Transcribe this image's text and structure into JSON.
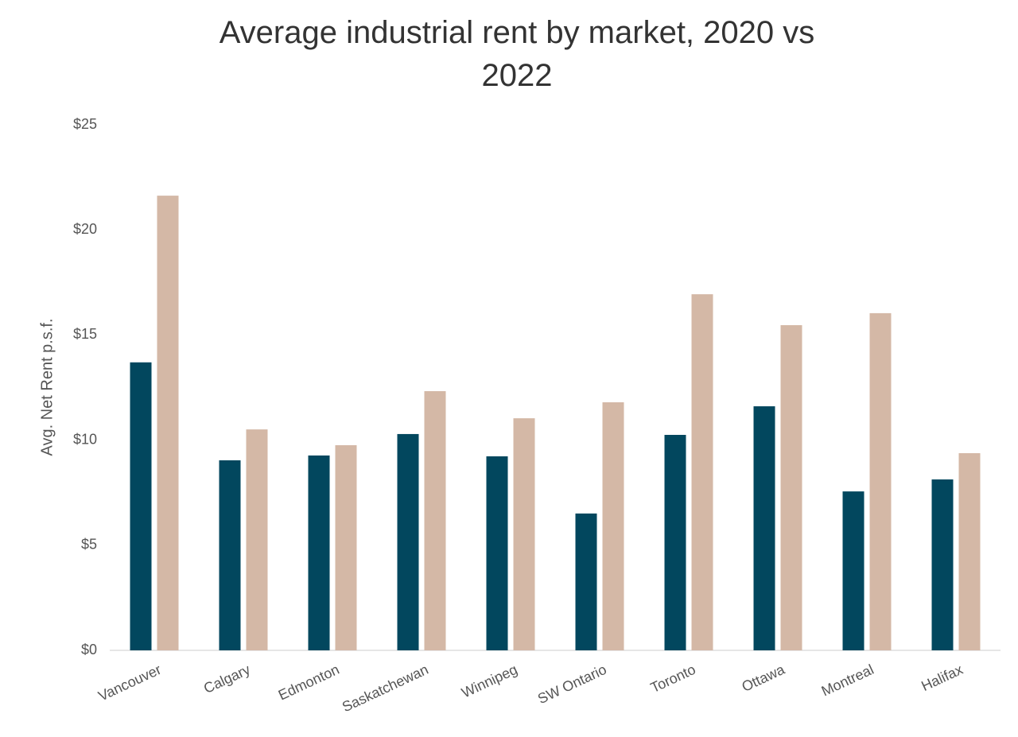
{
  "chart_data": {
    "type": "bar",
    "title": "Average industrial rent by market, 2020 vs 2022",
    "y_label": "Avg. Net Rent p.s.f.",
    "categories": [
      "Vancouver",
      "Calgary",
      "Edmonton",
      "Saskatchewan",
      "Winnipeg",
      "SW Ontario",
      "Toronto",
      "Ottawa",
      "Montreal",
      "Halifax"
    ],
    "series": [
      {
        "color": "#02475e",
        "values": [
          13.7,
          9.04,
          9.27,
          10.29,
          9.23,
          6.51,
          10.25,
          11.61,
          7.56,
          8.13
        ]
      },
      {
        "color": "#d4b8a6",
        "values": [
          21.63,
          10.51,
          9.76,
          12.33,
          11.04,
          11.8,
          16.94,
          15.47,
          16.04,
          9.38
        ]
      }
    ],
    "ylim": [
      0,
      25
    ],
    "yticks": [
      {
        "value": 0,
        "label": "$0"
      },
      {
        "value": 5,
        "label": "$5"
      },
      {
        "value": 10,
        "label": "$10"
      },
      {
        "value": 15,
        "label": "$15"
      },
      {
        "value": 20,
        "label": "$20"
      },
      {
        "value": 25,
        "label": "$25"
      }
    ],
    "grid": false
  }
}
